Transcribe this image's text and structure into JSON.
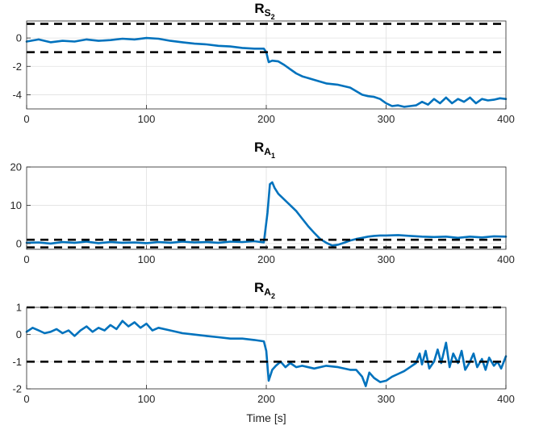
{
  "chart_data": [
    {
      "type": "line",
      "title": {
        "main": "R",
        "sub": "S",
        "subsub": "2"
      },
      "xlabel": "",
      "ylabel": "",
      "xlim": [
        0,
        400
      ],
      "ylim": [
        -5,
        1.2
      ],
      "xticks": [
        "0",
        "100",
        "200",
        "300",
        "400"
      ],
      "xtick_values": [
        0,
        100,
        200,
        300,
        400
      ],
      "yticks": [
        "-4",
        "-2",
        "0"
      ],
      "ytick_values": [
        -4,
        -2,
        0
      ],
      "grid": true,
      "thresholds": [
        1,
        -1
      ],
      "series": [
        {
          "color": "#0072BD",
          "x": [
            0,
            10,
            20,
            30,
            40,
            50,
            60,
            70,
            80,
            90,
            100,
            110,
            120,
            130,
            140,
            150,
            160,
            170,
            180,
            190,
            198,
            200,
            202,
            205,
            210,
            215,
            220,
            225,
            230,
            240,
            250,
            260,
            270,
            275,
            280,
            285,
            290,
            295,
            300,
            305,
            310,
            315,
            320,
            325,
            330,
            335,
            340,
            345,
            350,
            355,
            360,
            365,
            370,
            375,
            380,
            385,
            390,
            395,
            400
          ],
          "y": [
            -0.25,
            -0.1,
            -0.3,
            -0.2,
            -0.25,
            -0.1,
            -0.2,
            -0.15,
            -0.05,
            -0.1,
            0.0,
            -0.05,
            -0.2,
            -0.3,
            -0.4,
            -0.45,
            -0.55,
            -0.6,
            -0.7,
            -0.75,
            -0.75,
            -1.0,
            -1.7,
            -1.6,
            -1.65,
            -1.9,
            -2.2,
            -2.5,
            -2.7,
            -2.95,
            -3.2,
            -3.3,
            -3.5,
            -3.75,
            -4.0,
            -4.1,
            -4.15,
            -4.3,
            -4.6,
            -4.8,
            -4.75,
            -4.85,
            -4.8,
            -4.75,
            -4.5,
            -4.7,
            -4.3,
            -4.6,
            -4.2,
            -4.6,
            -4.3,
            -4.5,
            -4.2,
            -4.6,
            -4.3,
            -4.4,
            -4.35,
            -4.25,
            -4.3
          ]
        }
      ]
    },
    {
      "type": "line",
      "title": {
        "main": "R",
        "sub": "A",
        "subsub": "1"
      },
      "xlabel": "",
      "ylabel": "",
      "xlim": [
        0,
        400
      ],
      "ylim": [
        -1.5,
        20
      ],
      "xticks": [
        "0",
        "100",
        "200",
        "300",
        "400"
      ],
      "xtick_values": [
        0,
        100,
        200,
        300,
        400
      ],
      "yticks": [
        "0",
        "10",
        "20"
      ],
      "ytick_values": [
        0,
        10,
        20
      ],
      "grid": true,
      "thresholds": [
        1,
        -1
      ],
      "series": [
        {
          "color": "#0072BD",
          "x": [
            0,
            10,
            20,
            30,
            40,
            50,
            60,
            70,
            80,
            90,
            100,
            110,
            120,
            130,
            140,
            150,
            160,
            170,
            180,
            190,
            198,
            201,
            203,
            205,
            207,
            210,
            215,
            220,
            225,
            230,
            235,
            240,
            245,
            250,
            255,
            260,
            265,
            270,
            275,
            280,
            285,
            290,
            295,
            300,
            310,
            320,
            330,
            340,
            350,
            360,
            370,
            380,
            390,
            400
          ],
          "y": [
            0.2,
            0.3,
            0.0,
            0.4,
            0.2,
            0.5,
            0.1,
            0.4,
            0.2,
            0.3,
            0.1,
            0.4,
            0.2,
            0.5,
            0.3,
            0.4,
            0.2,
            0.5,
            0.4,
            0.6,
            0.3,
            8.0,
            15.5,
            16.0,
            14.5,
            13.0,
            11.5,
            10.0,
            8.5,
            6.5,
            4.5,
            2.8,
            1.2,
            0.2,
            -0.5,
            -0.3,
            0.2,
            0.8,
            1.2,
            1.5,
            1.8,
            2.0,
            2.1,
            2.1,
            2.2,
            2.0,
            1.8,
            1.7,
            1.8,
            1.5,
            1.8,
            1.6,
            1.9,
            1.8
          ]
        }
      ]
    },
    {
      "type": "line",
      "title": {
        "main": "R",
        "sub": "A",
        "subsub": "2"
      },
      "xlabel": "Time [s]",
      "ylabel": "",
      "xlim": [
        0,
        400
      ],
      "ylim": [
        -2,
        1
      ],
      "xticks": [
        "0",
        "100",
        "200",
        "300",
        "400"
      ],
      "xtick_values": [
        0,
        100,
        200,
        300,
        400
      ],
      "yticks": [
        "-2",
        "-1",
        "0",
        "1"
      ],
      "ytick_values": [
        -2,
        -1,
        0,
        1
      ],
      "grid": true,
      "thresholds": [
        1,
        -1
      ],
      "series": [
        {
          "color": "#0072BD",
          "x": [
            0,
            5,
            10,
            15,
            20,
            25,
            30,
            35,
            40,
            45,
            50,
            55,
            60,
            65,
            70,
            75,
            80,
            85,
            90,
            95,
            100,
            105,
            110,
            120,
            130,
            140,
            150,
            160,
            170,
            180,
            190,
            198,
            200,
            202,
            205,
            208,
            212,
            216,
            220,
            225,
            230,
            240,
            250,
            260,
            270,
            275,
            280,
            283,
            286,
            290,
            295,
            300,
            305,
            310,
            315,
            320,
            325,
            328,
            330,
            333,
            336,
            340,
            343,
            346,
            350,
            353,
            356,
            360,
            363,
            366,
            370,
            373,
            376,
            380,
            383,
            386,
            390,
            393,
            396,
            400
          ],
          "y": [
            0.1,
            0.25,
            0.15,
            0.05,
            0.1,
            0.2,
            0.05,
            0.15,
            -0.05,
            0.15,
            0.3,
            0.1,
            0.25,
            0.15,
            0.35,
            0.2,
            0.5,
            0.3,
            0.45,
            0.25,
            0.4,
            0.15,
            0.25,
            0.15,
            0.05,
            0.0,
            -0.05,
            -0.1,
            -0.15,
            -0.15,
            -0.2,
            -0.25,
            -0.6,
            -1.7,
            -1.3,
            -1.15,
            -1.0,
            -1.2,
            -1.05,
            -1.2,
            -1.15,
            -1.25,
            -1.15,
            -1.2,
            -1.3,
            -1.3,
            -1.55,
            -1.9,
            -1.4,
            -1.6,
            -1.75,
            -1.7,
            -1.55,
            -1.45,
            -1.35,
            -1.2,
            -1.05,
            -0.7,
            -1.1,
            -0.6,
            -1.25,
            -1.0,
            -0.55,
            -1.05,
            -0.3,
            -1.2,
            -0.7,
            -1.05,
            -0.6,
            -1.3,
            -1.0,
            -0.7,
            -1.2,
            -0.9,
            -1.3,
            -0.85,
            -1.15,
            -1.0,
            -1.25,
            -0.8
          ]
        }
      ]
    }
  ]
}
